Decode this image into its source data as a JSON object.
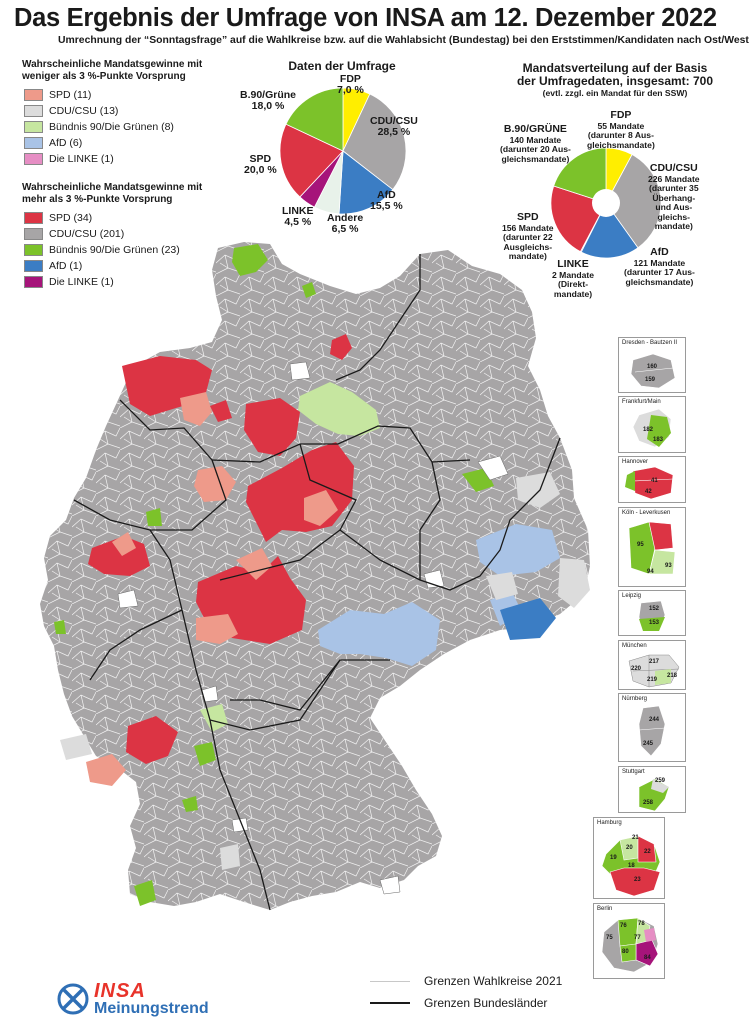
{
  "header": {
    "title": "Das Ergebnis der Umfrage von INSA am 12. Dezember 2022",
    "subtitle": "Umrechnung der “Sonntagsfrage” auf die Wahlkreise bzw. auf die Wahlabsicht (Bundestag) bei den Erststimmen/Kandidaten nach Ost/West"
  },
  "legend_narrow": {
    "heading_line1": "Wahrscheinliche Mandatsgewinne mit",
    "heading_line2": "weniger als 3 %-Punkte Vorsprung",
    "items": [
      {
        "label": "SPD (11)",
        "color": "#ee9a8a"
      },
      {
        "label": "CDU/CSU (13)",
        "color": "#dcdcdc"
      },
      {
        "label": "Bündnis 90/Die Grünen (8)",
        "color": "#c6e6a0"
      },
      {
        "label": "AfD (6)",
        "color": "#a9c3e6"
      },
      {
        "label": "Die LINKE (1)",
        "color": "#e68ec4"
      }
    ]
  },
  "legend_wide": {
    "heading_line1": "Wahrscheinliche Mandatsgewinne mit",
    "heading_line2": "mehr als 3 %-Punkte Vorsprung",
    "items": [
      {
        "label": "SPD (34)",
        "color": "#dc3444"
      },
      {
        "label": "CDU/CSU (201)",
        "color": "#a7a5a6"
      },
      {
        "label": "Bündnis 90/Die Grünen (23)",
        "color": "#7cc22a"
      },
      {
        "label": "AfD (1)",
        "color": "#3b7dc4"
      },
      {
        "label": "Die LINKE (1)",
        "color": "#a6147a"
      }
    ]
  },
  "chart_data": [
    {
      "type": "pie",
      "title": "Daten der Umfrage",
      "categories": [
        "FDP",
        "CDU/CSU",
        "AfD",
        "Andere",
        "LINKE",
        "SPD",
        "B.90/Grüne"
      ],
      "values": [
        7.0,
        28.5,
        15.5,
        6.5,
        4.5,
        20.0,
        18.0
      ],
      "value_labels": [
        "7,0 %",
        "28,5 %",
        "15,5 %",
        "6,5 %",
        "4,5 %",
        "20,0 %",
        "18,0 %"
      ],
      "colors": [
        "#ffee00",
        "#a7a5a6",
        "#3b7dc4",
        "#e8f2ea",
        "#a6147a",
        "#dc3444",
        "#7cc22a"
      ]
    },
    {
      "type": "pie",
      "title_line1": "Mandatsverteilung auf der Basis",
      "title_line2": "der Umfragedaten, insgesamt: 700",
      "title_note": "(evtl. zzgl. ein Mandat für den SSW)",
      "categories": [
        "FDP",
        "CDU/CSU",
        "AfD",
        "LINKE",
        "SPD",
        "B.90/GRÜNE"
      ],
      "values": [
        55,
        226,
        121,
        2,
        156,
        140
      ],
      "colors": [
        "#ffee00",
        "#a7a5a6",
        "#3b7dc4",
        "#a6147a",
        "#dc3444",
        "#7cc22a"
      ],
      "labels": [
        {
          "name": "FDP",
          "lines": [
            "55 Mandate",
            "(darunter 8 Aus-",
            "gleichsmandate)"
          ]
        },
        {
          "name": "CDU/CSU",
          "lines": [
            "226 Mandate",
            "(darunter 35",
            "Überhang-",
            "und Aus-",
            "gleichs-",
            "mandate)"
          ]
        },
        {
          "name": "AfD",
          "lines": [
            "121 Mandate",
            "(darunter 17 Aus-",
            "gleichsmandate)"
          ]
        },
        {
          "name": "LINKE",
          "lines": [
            "2 Mandate",
            "(Direkt-",
            "mandate)"
          ]
        },
        {
          "name": "SPD",
          "lines": [
            "156 Mandate",
            "(darunter 22",
            "Ausgleichs-",
            "mandate)"
          ]
        },
        {
          "name": "B.90/GRÜNE",
          "lines": [
            "140 Mandate",
            "(darunter 20 Aus-",
            "gleichsmandate)"
          ]
        }
      ]
    }
  ],
  "insets": [
    {
      "title": "Dresden - Bautzen II",
      "numbers": [
        "160",
        "159"
      ]
    },
    {
      "title": "Frankfurt/Main",
      "numbers": [
        "182",
        "183"
      ]
    },
    {
      "title": "Hannover",
      "numbers": [
        "41",
        "42"
      ]
    },
    {
      "title": "Köln - Leverkusen",
      "numbers": [
        "95",
        "94",
        "93"
      ]
    },
    {
      "title": "Leipzig",
      "numbers": [
        "152",
        "153"
      ]
    },
    {
      "title": "München",
      "numbers": [
        "217",
        "220",
        "219",
        "218"
      ]
    },
    {
      "title": "Nürnberg",
      "numbers": [
        "244",
        "245"
      ]
    },
    {
      "title": "Stuttgart",
      "numbers": [
        "259",
        "258"
      ]
    },
    {
      "title": "Hamburg",
      "numbers": [
        "21",
        "20",
        "22",
        "19",
        "18",
        "23"
      ]
    },
    {
      "title": "Berlin",
      "numbers": [
        "76",
        "78",
        "77",
        "75",
        "80",
        "84"
      ]
    }
  ],
  "map_legend": {
    "constituency_borders": "Grenzen Wahlkreise 2021",
    "state_borders": "Grenzen Bundesländer"
  },
  "logo": {
    "brand": "INSA",
    "tagline": "Meinungstrend"
  }
}
